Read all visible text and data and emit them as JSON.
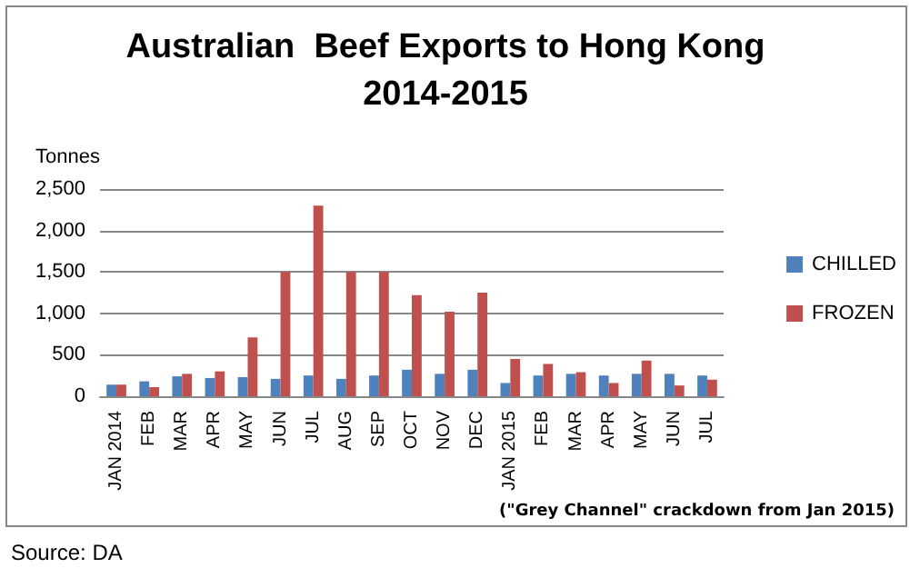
{
  "chart_data": {
    "type": "bar",
    "title": "Australian  Beef Exports to Hong Kong\n2014-2015",
    "ylabel": "Tonnes",
    "categories": [
      "JAN 2014",
      "FEB",
      "MAR",
      "APR",
      "MAY",
      "JUN",
      "JUL",
      "AUG",
      "SEP",
      "OCT",
      "NOV",
      "DEC",
      "JAN 2015",
      "FEB",
      "MAR",
      "APR",
      "MAY",
      "JUN",
      "JUL"
    ],
    "series": [
      {
        "name": "CHILLED",
        "color": "#4f81bd",
        "values": [
          140,
          180,
          240,
          220,
          230,
          210,
          250,
          210,
          250,
          320,
          270,
          320,
          160,
          250,
          270,
          250,
          270,
          270,
          250
        ]
      },
      {
        "name": "FROZEN",
        "color": "#c0504d",
        "values": [
          140,
          110,
          270,
          300,
          710,
          1500,
          2300,
          1500,
          1500,
          1220,
          1020,
          1250,
          450,
          390,
          290,
          160,
          430,
          130,
          200
        ]
      }
    ],
    "ylim": [
      0,
      2500
    ],
    "yticks": [
      {
        "value": 0,
        "label": "0"
      },
      {
        "value": 500,
        "label": "500"
      },
      {
        "value": 1000,
        "label": "1,000"
      },
      {
        "value": 1500,
        "label": "1,500"
      },
      {
        "value": 2000,
        "label": "2,000"
      },
      {
        "value": 2500,
        "label": "2,500"
      }
    ],
    "grid": "y",
    "legend": "right",
    "annotations": [
      "(\"Grey Channel\" crackdown from Jan 2015)",
      "Source: DA"
    ]
  }
}
